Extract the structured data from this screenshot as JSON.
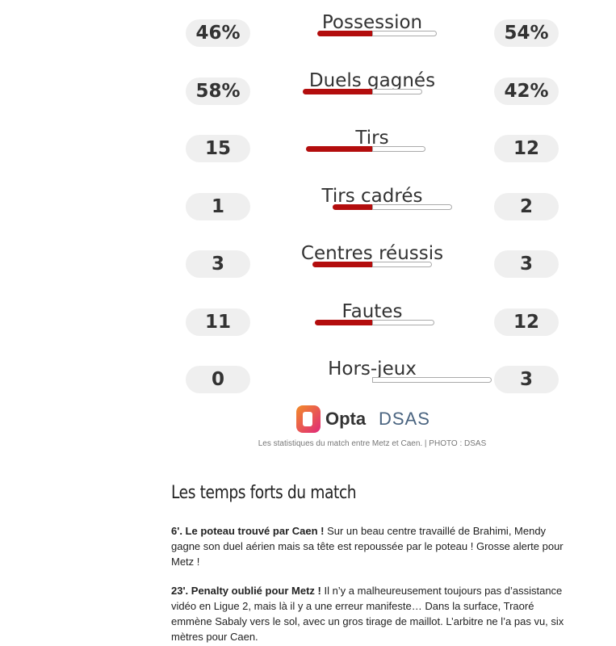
{
  "stats": [
    {
      "label": "Possession",
      "home": 46,
      "home_label": "46%",
      "away": 54,
      "away_label": "54%"
    },
    {
      "label": "Duels gagnés",
      "home": 58,
      "home_label": "58%",
      "away": 42,
      "away_label": "42%"
    },
    {
      "label": "Tirs",
      "home": 15,
      "away": 12
    },
    {
      "label": "Tirs cadrés",
      "home": 1,
      "away": 2
    },
    {
      "label": "Centres réussis",
      "home": 3,
      "away": 3
    },
    {
      "label": "Fautes",
      "home": 11,
      "away": 12
    },
    {
      "label": "Hors-jeux",
      "home": 0,
      "away": 3
    }
  ],
  "logos": {
    "opta": "Opta",
    "dsas": "DSAS"
  },
  "caption": "Les statistiques du match entre Metz et Caen. | PHOTO : DSAS",
  "article": {
    "heading": "Les temps forts du match",
    "paragraphs": [
      {
        "lead": "6'. Le poteau trouvé par Caen !",
        "text": " Sur un beau centre travaillé de Brahimi, Mendy gagne son duel aérien mais sa tête est repoussée par le poteau ! Grosse alerte pour Metz !"
      },
      {
        "lead": "23'. Penalty oublié pour Metz !",
        "text": " Il n’y a malheureusement toujours pas d’assistance vidéo en Ligue 2, mais là il y a une erreur manifeste… Dans la surface, Traoré emmène Sabaly vers le sol, avec un gros tirage de maillot. L’arbitre ne l’a pas vu, six mètres pour Caen."
      }
    ]
  }
}
